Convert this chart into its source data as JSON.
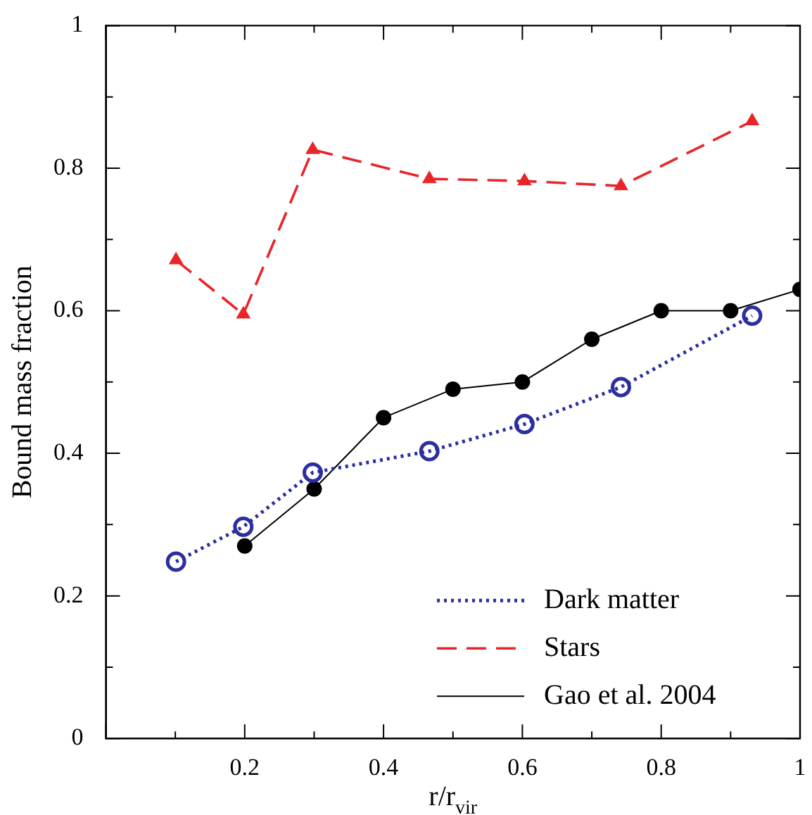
{
  "chart_data": {
    "type": "line",
    "xlabel": "r/r$_{vir}$",
    "ylabel": "Bound mass fraction",
    "xlim": [
      0,
      1
    ],
    "ylim": [
      0,
      1
    ],
    "xticks": [
      {
        "value": 0,
        "label": null
      },
      0.2,
      0.4,
      0.6,
      0.8,
      1
    ],
    "yticks": [
      0,
      0.2,
      0.4,
      0.6,
      0.8,
      1
    ],
    "legend": "bottom right",
    "series": [
      {
        "name": "Dark matter",
        "color": "#2b2f9e",
        "marker": "circle",
        "line_style": "dotted",
        "x": [
          0.101,
          0.198,
          0.298,
          0.466,
          0.603,
          0.742,
          0.931
        ],
        "values": [
          0.248,
          0.297,
          0.373,
          0.403,
          0.441,
          0.493,
          0.593
        ]
      },
      {
        "name": "Stars",
        "color": "#e8262a",
        "marker": "triangle",
        "line_style": "dashed",
        "x": [
          0.101,
          0.198,
          0.298,
          0.466,
          0.603,
          0.742,
          0.931
        ],
        "values": [
          0.671,
          0.595,
          0.826,
          0.785,
          0.782,
          0.775,
          0.866
        ]
      },
      {
        "name": "Gao et al. 2004",
        "color": "#000000",
        "marker": "circle",
        "line_style": "solid",
        "x": [
          0.2,
          0.3,
          0.4,
          0.5,
          0.6,
          0.7,
          0.8,
          0.9,
          1.0
        ],
        "values": [
          0.27,
          0.35,
          0.45,
          0.49,
          0.5,
          0.56,
          0.6,
          0.6,
          0.63
        ]
      }
    ]
  }
}
